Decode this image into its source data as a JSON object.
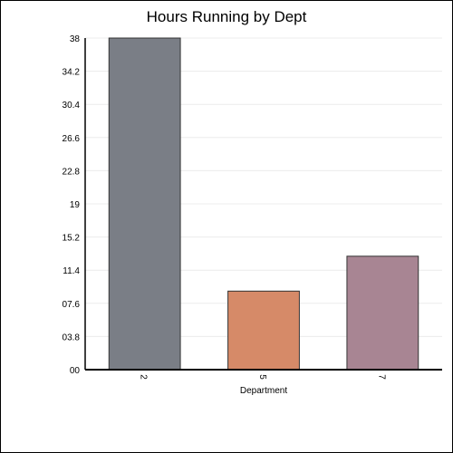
{
  "chart_data": {
    "type": "bar",
    "title": "Hours Running by Dept",
    "xlabel": "Department",
    "ylabel": "",
    "categories": [
      "2",
      "5",
      "7"
    ],
    "values": [
      38,
      9,
      13
    ],
    "colors": [
      "#7a7e86",
      "#d68a68",
      "#a88593"
    ],
    "ylim": [
      0,
      38
    ],
    "yticks": [
      "00",
      "03.8",
      "07.6",
      "11.4",
      "15.2",
      "19",
      "22.8",
      "26.6",
      "30.4",
      "34.2",
      "38"
    ],
    "ytick_values": [
      0,
      3.8,
      7.6,
      11.4,
      15.2,
      19,
      22.8,
      26.6,
      30.4,
      34.2,
      38
    ],
    "grid": true,
    "legend": "none"
  }
}
